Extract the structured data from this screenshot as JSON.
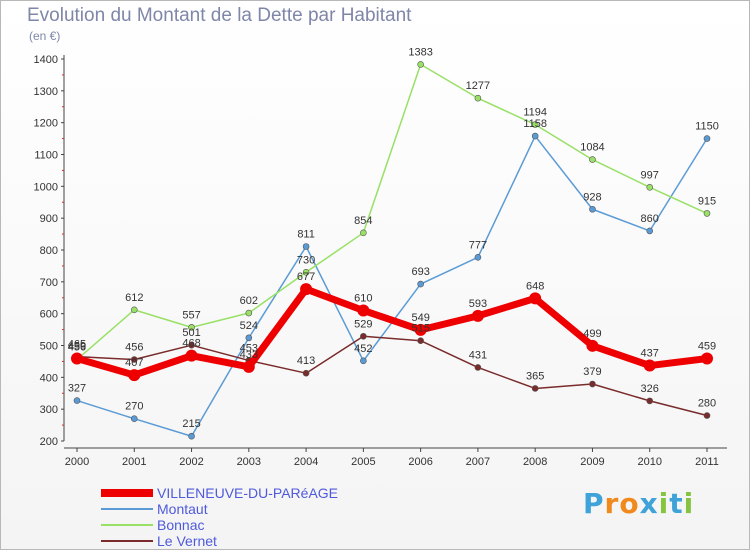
{
  "header": {
    "title": "Evolution du Montant de la Dette par Habitant",
    "unit": "(en €)"
  },
  "brand": {
    "letters": [
      "P",
      "r",
      "o",
      "x",
      "i",
      "t",
      "i"
    ],
    "colors": [
      "#3fa2d8",
      "#f08a1d",
      "#f08a1d",
      "#3fa2d8",
      "#86c440",
      "#3fa2d8",
      "#86c440"
    ]
  },
  "chart_data": {
    "type": "line",
    "title": "Evolution du Montant de la Dette par Habitant",
    "ylabel": "(en €)",
    "xlabel": "",
    "categories": [
      "2000",
      "2001",
      "2002",
      "2003",
      "2004",
      "2005",
      "2006",
      "2007",
      "2008",
      "2009",
      "2010",
      "2011"
    ],
    "ylim": [
      200,
      1400
    ],
    "yticks": [
      200,
      300,
      400,
      500,
      600,
      700,
      800,
      900,
      1000,
      1100,
      1200,
      1300,
      1400
    ],
    "grid": false,
    "legend": "bottom-left",
    "series": [
      {
        "name": "VILLENEUVE-DU-PARéAGE",
        "color": "#ee0000",
        "width": 7,
        "values": [
          459,
          407,
          468,
          433,
          677,
          610,
          549,
          593,
          648,
          499,
          437,
          459
        ],
        "labels": [
          "459",
          "407",
          "468",
          "433",
          "677",
          "610",
          "549",
          "593",
          "648",
          "499",
          "437",
          "459"
        ]
      },
      {
        "name": "Montaut",
        "color": "#5b9bd5",
        "width": 1.5,
        "values": [
          327,
          270,
          215,
          524,
          811,
          452,
          693,
          777,
          1158,
          928,
          860,
          1150
        ],
        "labels": [
          "327",
          "270",
          "215",
          "524",
          "811",
          "452",
          "693",
          "777",
          "1158",
          "928",
          "860",
          "1150"
        ]
      },
      {
        "name": "Bonnac",
        "color": "#99e066",
        "width": 1.5,
        "values": [
          456,
          612,
          557,
          602,
          730,
          854,
          1383,
          1277,
          1194,
          1084,
          997,
          915
        ],
        "labels": [
          "456",
          "612",
          "557",
          "602",
          "730",
          "854",
          "1383",
          "1277",
          "1194",
          "1084",
          "997",
          "915"
        ]
      },
      {
        "name": "Le Vernet",
        "color": "#7a2b2b",
        "width": 1.5,
        "values": [
          465,
          456,
          501,
          453,
          413,
          529,
          515,
          431,
          365,
          379,
          326,
          280
        ],
        "labels": [
          "465",
          "456",
          "501",
          "453",
          "413",
          "529",
          "515",
          "431",
          "365",
          "379",
          "326",
          "280"
        ]
      }
    ]
  }
}
